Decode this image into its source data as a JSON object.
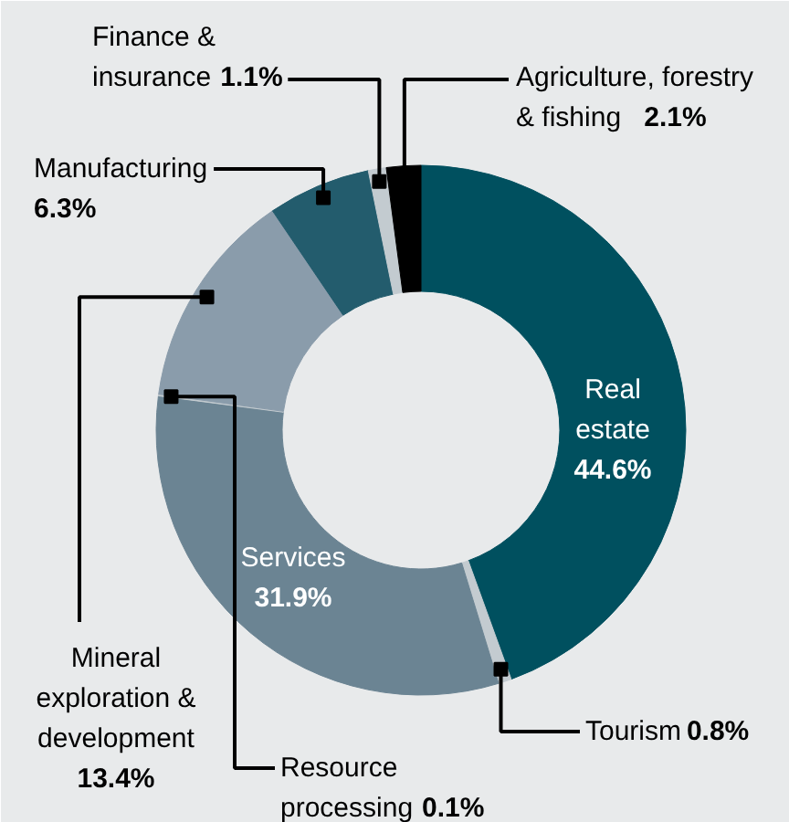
{
  "chart_data": {
    "type": "donut",
    "categories": [
      "Real estate",
      "Tourism",
      "Services",
      "Resource processing",
      "Mineral exploration & development",
      "Manufacturing",
      "Finance & insurance",
      "Agriculture, forestry & fishing"
    ],
    "values": [
      44.6,
      0.8,
      31.9,
      0.1,
      13.4,
      6.3,
      1.1,
      2.1
    ],
    "colors": [
      "#00505f",
      "#c3cbd0",
      "#6b8493",
      "#c3cbd0",
      "#8a9cab",
      "#235c6d",
      "#c3cbd0",
      "#000000"
    ],
    "value_labels": [
      "44.6%",
      "0.8%",
      "31.9%",
      "0.1%",
      "13.4%",
      "6.3%",
      "1.1%",
      "2.1%"
    ]
  }
}
